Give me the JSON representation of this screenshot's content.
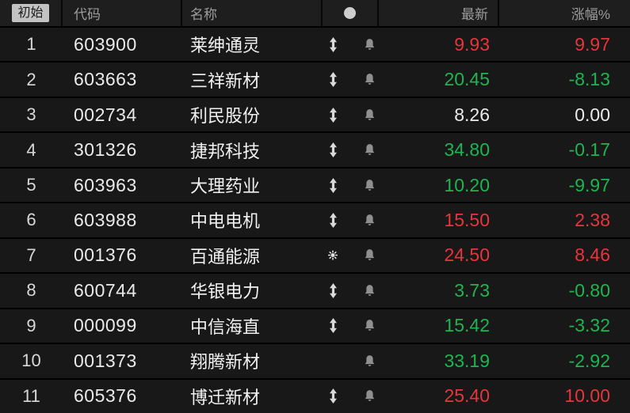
{
  "header": {
    "filter_button": "初始",
    "columns": {
      "code": "代码",
      "name": "名称",
      "indicator": "dot-icon",
      "latest": "最新",
      "change_pct": "涨幅%"
    }
  },
  "colors": {
    "up": "#e6353b",
    "down": "#1fb450",
    "flat": "#ebebeb"
  },
  "rows": [
    {
      "rank": "1",
      "code": "603900",
      "name": "莱绅通灵",
      "indicator": "updown-arrow-icon",
      "alert_icon": "bell-icon",
      "latest": "9.93",
      "latest_dir": "up",
      "change": "9.97",
      "change_dir": "up"
    },
    {
      "rank": "2",
      "code": "603663",
      "name": "三祥新材",
      "indicator": "updown-arrow-icon",
      "alert_icon": "bell-icon",
      "latest": "20.45",
      "latest_dir": "down",
      "change": "-8.13",
      "change_dir": "down"
    },
    {
      "rank": "3",
      "code": "002734",
      "name": "利民股份",
      "indicator": "updown-arrow-icon",
      "alert_icon": "bell-icon",
      "latest": "8.26",
      "latest_dir": "flat",
      "change": "0.00",
      "change_dir": "flat"
    },
    {
      "rank": "4",
      "code": "301326",
      "name": "捷邦科技",
      "indicator": "updown-arrow-icon",
      "alert_icon": "bell-icon",
      "latest": "34.80",
      "latest_dir": "down",
      "change": "-0.17",
      "change_dir": "down"
    },
    {
      "rank": "5",
      "code": "603963",
      "name": "大理药业",
      "indicator": "updown-arrow-icon",
      "alert_icon": "bell-icon",
      "latest": "10.20",
      "latest_dir": "down",
      "change": "-9.97",
      "change_dir": "down"
    },
    {
      "rank": "6",
      "code": "603988",
      "name": "中电电机",
      "indicator": "updown-arrow-icon",
      "alert_icon": "bell-icon",
      "latest": "15.50",
      "latest_dir": "up",
      "change": "2.38",
      "change_dir": "up"
    },
    {
      "rank": "7",
      "code": "001376",
      "name": "百通能源",
      "indicator": "sun-icon",
      "alert_icon": "bell-icon",
      "latest": "24.50",
      "latest_dir": "up",
      "change": "8.46",
      "change_dir": "up"
    },
    {
      "rank": "8",
      "code": "600744",
      "name": "华银电力",
      "indicator": "updown-arrow-icon",
      "alert_icon": "bell-icon",
      "latest": "3.73",
      "latest_dir": "down",
      "change": "-0.80",
      "change_dir": "down"
    },
    {
      "rank": "9",
      "code": "000099",
      "name": "中信海直",
      "indicator": "updown-arrow-icon",
      "alert_icon": "bell-icon",
      "latest": "15.42",
      "latest_dir": "down",
      "change": "-3.32",
      "change_dir": "down"
    },
    {
      "rank": "10",
      "code": "001373",
      "name": "翔腾新材",
      "indicator": "none",
      "alert_icon": "bell-icon",
      "latest": "33.19",
      "latest_dir": "down",
      "change": "-2.92",
      "change_dir": "down"
    },
    {
      "rank": "11",
      "code": "605376",
      "name": "博迁新材",
      "indicator": "updown-arrow-icon",
      "alert_icon": "bell-icon",
      "latest": "25.40",
      "latest_dir": "up",
      "change": "10.00",
      "change_dir": "up"
    }
  ]
}
